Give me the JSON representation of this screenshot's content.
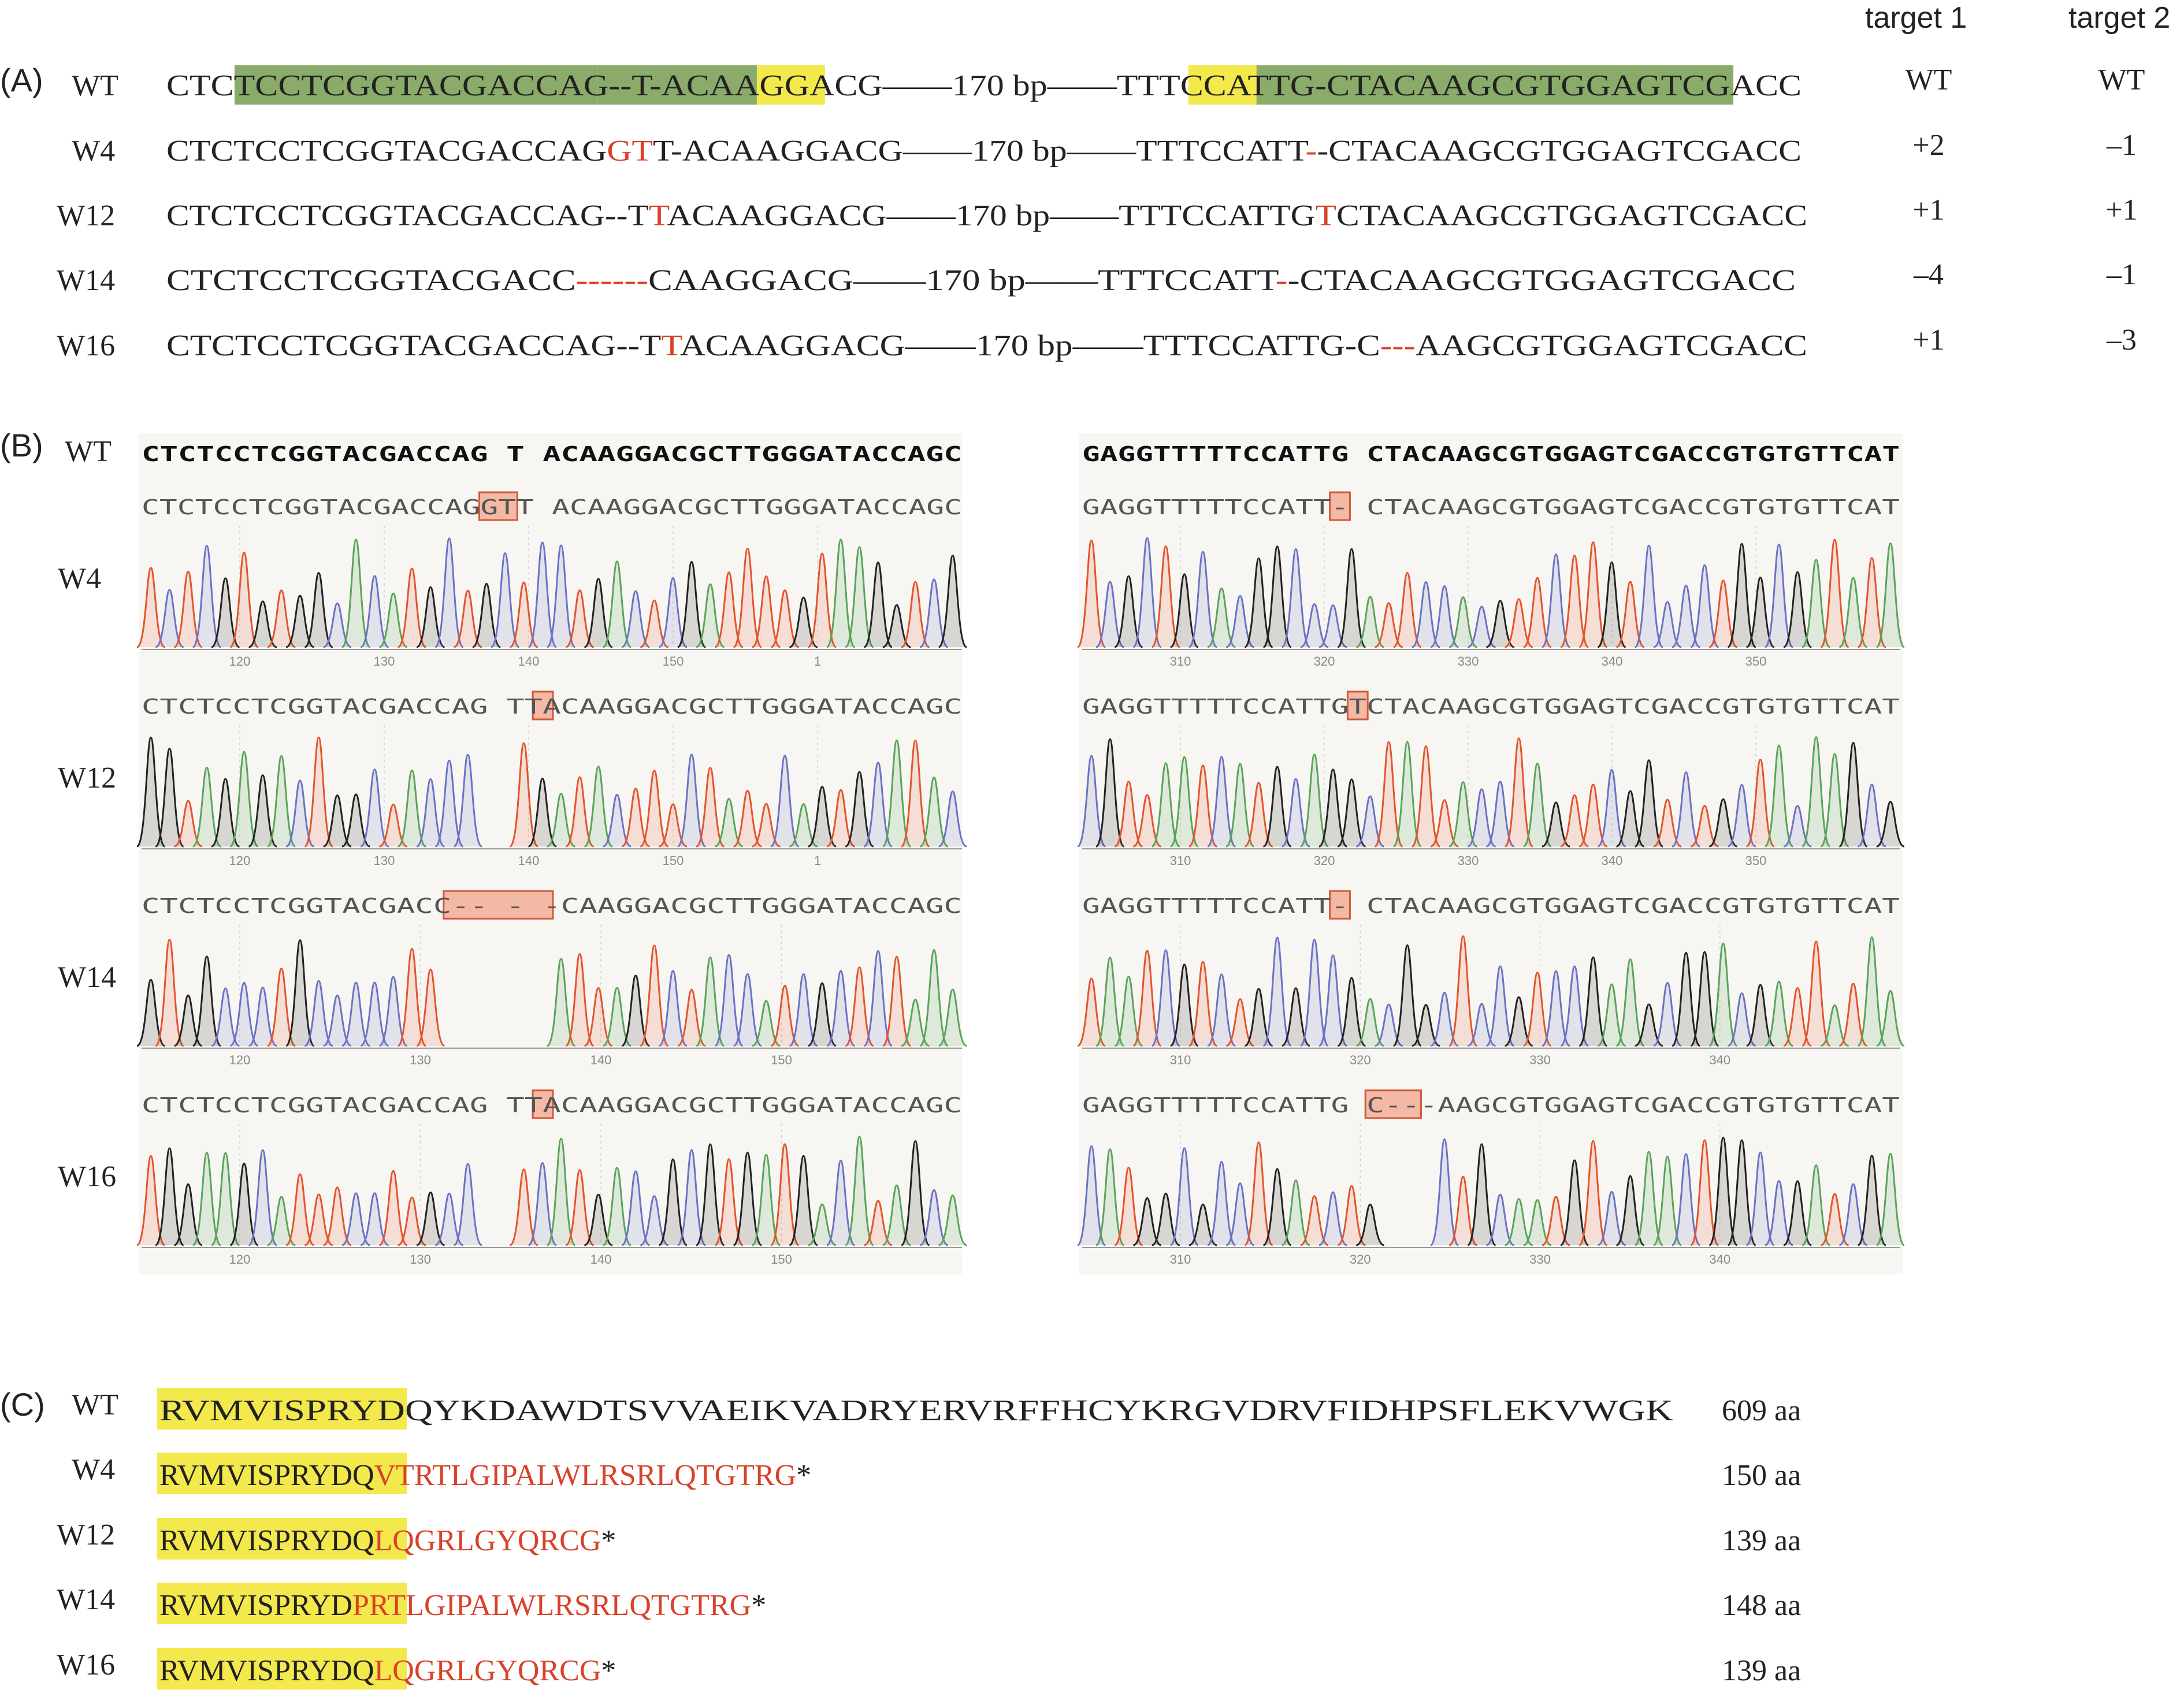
{
  "panelA": {
    "label": "(A)",
    "col_headers": [
      "target 1",
      "target 2"
    ],
    "rows": [
      {
        "name": "WT",
        "t1": "WT",
        "t2": "WT",
        "segs": [
          [
            "CTC",
            "n"
          ],
          [
            "TCCTCGGTACGACCAG",
            "g"
          ],
          [
            "--T-ACA",
            "g"
          ],
          [
            "AGG",
            "y"
          ],
          [
            "ACG——170 bp——TTT",
            "n"
          ],
          [
            "CCA",
            "y"
          ],
          [
            "TTG-CTACAAGCGTGGAGTCG",
            "g"
          ],
          [
            "ACC",
            "n"
          ]
        ]
      },
      {
        "name": "W4",
        "t1": "+2",
        "t2": "–1",
        "segs": [
          [
            "CTCTCCTCGGTACGACCAG",
            "n"
          ],
          [
            "GT",
            "r"
          ],
          [
            "T-ACAAGGACG——170 bp——TTTCCATT",
            "n"
          ],
          [
            "-",
            "r"
          ],
          [
            "-CTACAAGCGTGGAGTCGACC",
            "n"
          ]
        ]
      },
      {
        "name": "W12",
        "t1": "+1",
        "t2": "+1",
        "segs": [
          [
            "CTCTCCTCGGTACGACCAG--T",
            "n"
          ],
          [
            "T",
            "r"
          ],
          [
            "ACAAGGACG——170 bp——TTTCCATTG",
            "n"
          ],
          [
            "T",
            "r"
          ],
          [
            "CTACAAGCGTGGAGTCGACC",
            "n"
          ]
        ]
      },
      {
        "name": "W14",
        "t1": "–4",
        "t2": "–1",
        "segs": [
          [
            "CTCTCCTCGGTACGACC",
            "n"
          ],
          [
            "------",
            "r"
          ],
          [
            "CAAGGACG——170 bp——TTTCCATT",
            "n"
          ],
          [
            "-",
            "r"
          ],
          [
            "-CTACAAGCGTGGAGTCGACC",
            "n"
          ]
        ]
      },
      {
        "name": "W16",
        "t1": "+1",
        "t2": "–3",
        "segs": [
          [
            "CTCTCCTCGGTACGACCAG--T",
            "n"
          ],
          [
            "T",
            "r"
          ],
          [
            "ACAAGGACG——170 bp——TTTCCATTG-C",
            "n"
          ],
          [
            "---",
            "r"
          ],
          [
            "AAGCGTGGAGTCGACC",
            "n"
          ]
        ]
      }
    ]
  },
  "panelB": {
    "label": "(B)",
    "wt_label": "WT",
    "wt_left": "CTCTCCTCGGTACGACCAG  T ACAAGGACGCTTGGGATACCAGC",
    "wt_right": "GAGGTTTTTCCATTG CTACAAGCGTGGAGTCGACCGTGTGTTCAT",
    "rows": [
      {
        "name": "W4",
        "left_seq": "CTCTCCTCGGTACGACCAGGTT ACAAGGACGCTTGGGATACCAGC",
        "left_hl": [
          19,
          2
        ],
        "right_seq": "GAGGTTTTTCCATT- CTACAAGCGTGGAGTCGACCGTGTGTTCAT",
        "right_hl": [
          14,
          1
        ],
        "left_ticks": [
          "120",
          "130",
          "140",
          "150",
          "1"
        ],
        "right_ticks": [
          "310",
          "320",
          "330",
          "340",
          "350"
        ]
      },
      {
        "name": "W12",
        "left_seq": "CTCTCCTCGGTACGACCAG  TTACAAGGACGCTTGGGATACCAGC",
        "left_hl": [
          22,
          1
        ],
        "right_seq": "GAGGTTTTTCCATTGTCTACAAGCGTGGAGTCGACCGTGTGTTCAT",
        "right_hl": [
          15,
          1
        ],
        "left_ticks": [
          "120",
          "130",
          "140",
          "150",
          "1"
        ],
        "right_ticks": [
          "310",
          "320",
          "330",
          "340",
          "350"
        ]
      },
      {
        "name": "W14",
        "left_seq": "CTCTCCTCGGTACGACC--  - -CAAGGACGCTTGGGATACCAGC",
        "left_hl": [
          17,
          6
        ],
        "right_seq": "GAGGTTTTTCCATT- CTACAAGCGTGGAGTCGACCGTGTGTTCAT",
        "right_hl": [
          14,
          1
        ],
        "left_ticks": [
          "120",
          "130",
          "140",
          "150"
        ],
        "right_ticks": [
          "310",
          "320",
          "330",
          "340"
        ]
      },
      {
        "name": "W16",
        "left_seq": "CTCTCCTCGGTACGACCAG  TTACAAGGACGCTTGGGATACCAGC",
        "left_hl": [
          22,
          1
        ],
        "right_seq": "GAGGTTTTTCCATTG C---AAGCGTGGAGTCGACCGTGTGTTCAT",
        "right_hl": [
          16,
          3
        ],
        "left_ticks": [
          "120",
          "130",
          "140",
          "150"
        ],
        "right_ticks": [
          "310",
          "320",
          "330",
          "340"
        ]
      }
    ]
  },
  "panelC": {
    "label": "(C)",
    "conserved": "RVMVISPRYD",
    "rows": [
      {
        "name": "WT",
        "seq_black": "QYKDAWDTSVVAEIKVADRYERVRFFHCYKRGVDRVFIDHPSFLEKVWGK",
        "seq_red": "",
        "stop": "",
        "length": "609 aa"
      },
      {
        "name": "W4",
        "seq_black": "Q",
        "seq_red": "VTRTLGIPALWLRSRLQTGTRG",
        "stop": "*",
        "length": "150 aa"
      },
      {
        "name": "W12",
        "seq_black": "Q",
        "seq_red": "LQGRLGYQRCG",
        "stop": "*",
        "length": "139 aa"
      },
      {
        "name": "W14",
        "seq_black": "",
        "seq_red": "PRTLGIPALWLRSRLQTGTRG",
        "stop": "*",
        "length": "148 aa"
      },
      {
        "name": "W16",
        "seq_black": "Q",
        "seq_red": "LQGRLGYQRCG",
        "stop": "*",
        "length": "139 aa"
      }
    ]
  },
  "colors": {
    "green_highlight": "#8bab6b",
    "yellow_highlight": "#f3e84c",
    "mutation_red": "#d9412a",
    "trace_A": "#5aa45a",
    "trace_C": "#6b73c4",
    "trace_G": "#222222",
    "trace_T": "#e2552e",
    "chromatogram_bg": "#f7f6f2",
    "box_fill": "#f4b9a4"
  }
}
